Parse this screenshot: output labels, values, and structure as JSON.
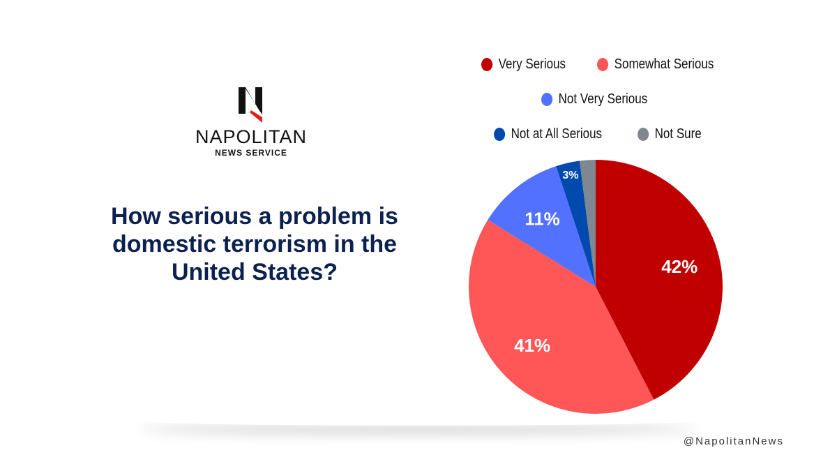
{
  "logo": {
    "wordmark": "NAPOLITAN",
    "sub": "NEWS SERVICE"
  },
  "title": "How serious a problem is domestic terrorism in the United States?",
  "handle": "@NapolitanNews",
  "chart_data": {
    "type": "pie",
    "title": "How serious a problem is domestic terrorism in the United States?",
    "legend_position": "top",
    "slices": [
      {
        "name": "Very Serious",
        "value": 42,
        "label": "42%",
        "color": "#c00000"
      },
      {
        "name": "Somewhat Serious",
        "value": 41,
        "label": "41%",
        "color": "#ff5757"
      },
      {
        "name": "Not Very Serious",
        "value": 11,
        "label": "11%",
        "color": "#5271ff"
      },
      {
        "name": "Not at All Serious",
        "value": 3,
        "label": "3%",
        "color": "#004aad"
      },
      {
        "name": "Not Sure",
        "value": 2,
        "label": null,
        "color": "#7f8791"
      }
    ]
  }
}
